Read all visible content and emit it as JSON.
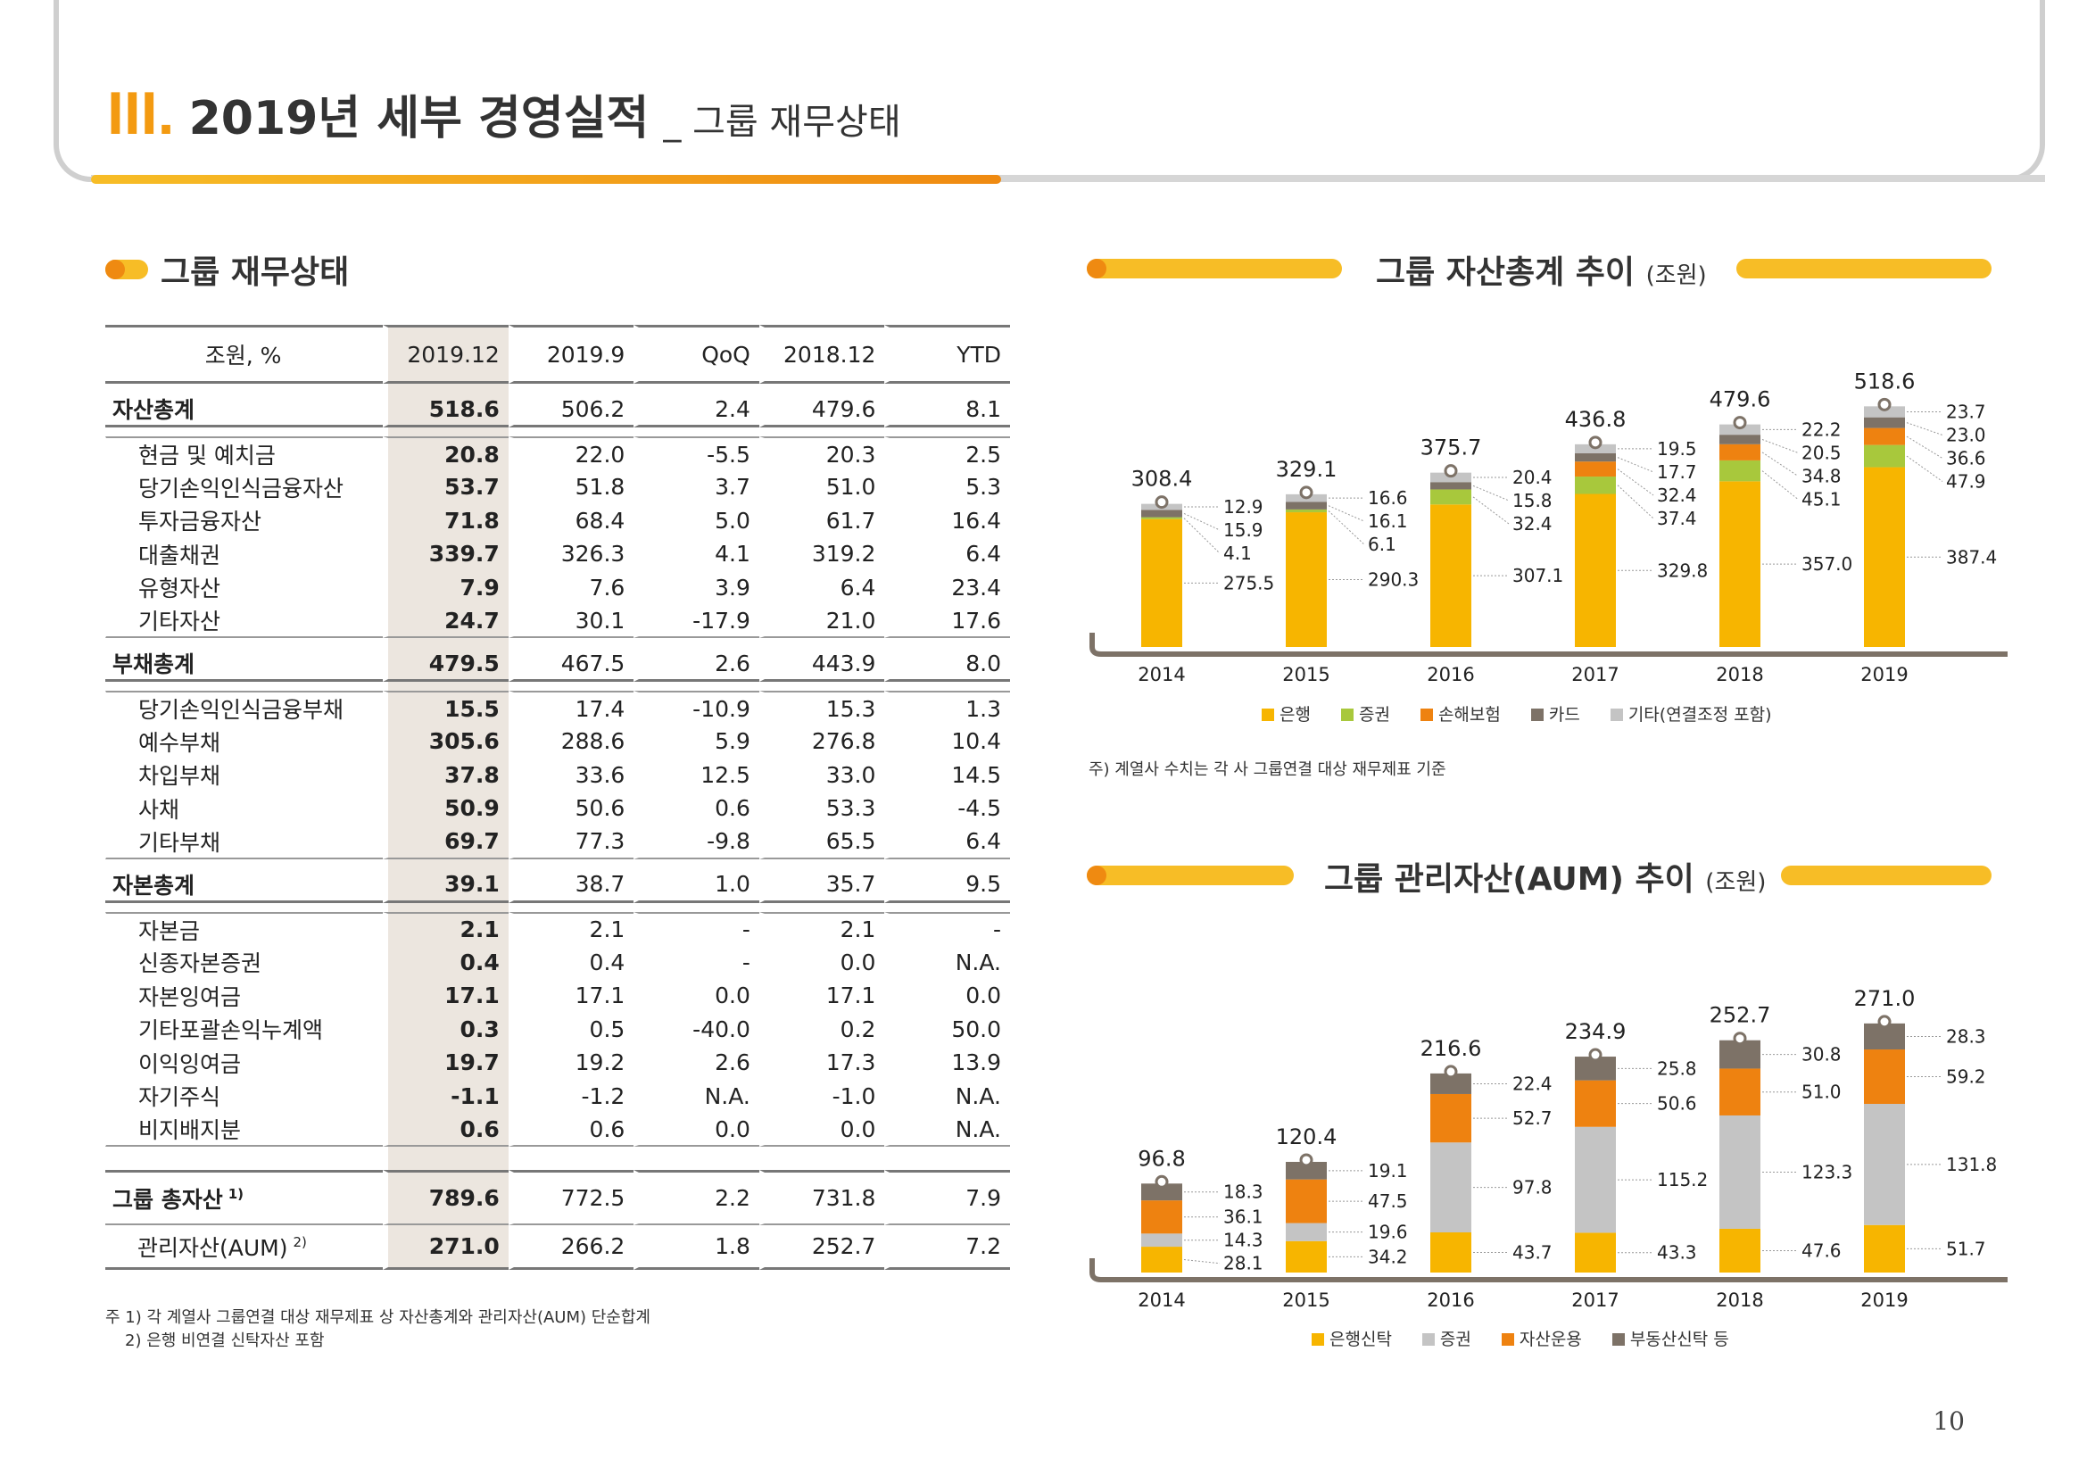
{
  "header": {
    "numeral": "III.",
    "title": "2019년 세부 경영실적",
    "subtitle": "_ 그룹 재무상태"
  },
  "left_section_title": "그룹 재무상태",
  "table": {
    "columns": [
      "조원, %",
      "2019.12",
      "2019.9",
      "QoQ",
      "2018.12",
      "YTD"
    ],
    "groups": [
      {
        "label": "자산총계",
        "values": [
          "518.6",
          "506.2",
          "2.4",
          "479.6",
          "8.1"
        ],
        "rows": [
          {
            "label": "현금 및 예치금",
            "values": [
              "20.8",
              "22.0",
              "-5.5",
              "20.3",
              "2.5"
            ]
          },
          {
            "label": "당기손익인식금융자산",
            "values": [
              "53.7",
              "51.8",
              "3.7",
              "51.0",
              "5.3"
            ]
          },
          {
            "label": "투자금융자산",
            "values": [
              "71.8",
              "68.4",
              "5.0",
              "61.7",
              "16.4"
            ]
          },
          {
            "label": "대출채권",
            "values": [
              "339.7",
              "326.3",
              "4.1",
              "319.2",
              "6.4"
            ]
          },
          {
            "label": "유형자산",
            "values": [
              "7.9",
              "7.6",
              "3.9",
              "6.4",
              "23.4"
            ]
          },
          {
            "label": "기타자산",
            "values": [
              "24.7",
              "30.1",
              "-17.9",
              "21.0",
              "17.6"
            ]
          }
        ]
      },
      {
        "label": "부채총계",
        "values": [
          "479.5",
          "467.5",
          "2.6",
          "443.9",
          "8.0"
        ],
        "rows": [
          {
            "label": "당기손익인식금융부채",
            "values": [
              "15.5",
              "17.4",
              "-10.9",
              "15.3",
              "1.3"
            ]
          },
          {
            "label": "예수부채",
            "values": [
              "305.6",
              "288.6",
              "5.9",
              "276.8",
              "10.4"
            ]
          },
          {
            "label": "차입부채",
            "values": [
              "37.8",
              "33.6",
              "12.5",
              "33.0",
              "14.5"
            ]
          },
          {
            "label": "사채",
            "values": [
              "50.9",
              "50.6",
              "0.6",
              "53.3",
              "-4.5"
            ]
          },
          {
            "label": "기타부채",
            "values": [
              "69.7",
              "77.3",
              "-9.8",
              "65.5",
              "6.4"
            ]
          }
        ]
      },
      {
        "label": "자본총계",
        "values": [
          "39.1",
          "38.7",
          "1.0",
          "35.7",
          "9.5"
        ],
        "rows": [
          {
            "label": "자본금",
            "values": [
              "2.1",
              "2.1",
              "-",
              "2.1",
              "-"
            ]
          },
          {
            "label": "신종자본증권",
            "values": [
              "0.4",
              "0.4",
              "-",
              "0.0",
              "N.A."
            ]
          },
          {
            "label": "자본잉여금",
            "values": [
              "17.1",
              "17.1",
              "0.0",
              "17.1",
              "0.0"
            ]
          },
          {
            "label": "기타포괄손익누계액",
            "values": [
              "0.3",
              "0.5",
              "-40.0",
              "0.2",
              "50.0"
            ]
          },
          {
            "label": "이익잉여금",
            "values": [
              "19.7",
              "19.2",
              "2.6",
              "17.3",
              "13.9"
            ]
          },
          {
            "label": "자기주식",
            "values": [
              "-1.1",
              "-1.2",
              "N.A.",
              "-1.0",
              "N.A."
            ]
          },
          {
            "label": "비지배지분",
            "values": [
              "0.6",
              "0.6",
              "0.0",
              "0.0",
              "N.A."
            ]
          }
        ]
      }
    ],
    "bottom": [
      {
        "label": "그룹 총자산",
        "sup": "1)",
        "values": [
          "789.6",
          "772.5",
          "2.2",
          "731.8",
          "7.9"
        ]
      },
      {
        "label": "관리자산(AUM)",
        "sup": "2)",
        "values": [
          "271.0",
          "266.2",
          "1.8",
          "252.7",
          "7.2"
        ]
      }
    ],
    "footnote1": "주 1) 각 계열사 그룹연결 대상 재무제표 상 자산총계와 관리자산(AUM) 단순합계",
    "footnote2": "2) 은행 비연결 신탁자산 포함"
  },
  "chart1_title": "그룹 자산총계 추이",
  "chart1_unit": "(조원)",
  "chart1_note": "주) 계열사 수치는 각 사 그룹연결 대상 재무제표 기준",
  "chart2_title": "그룹 관리자산(AUM) 추이",
  "chart2_unit": "(조원)",
  "page_number": "10",
  "chart_data": [
    {
      "type": "bar",
      "stacked": true,
      "title": "그룹 자산총계 추이 (조원)",
      "categories": [
        "2014",
        "2015",
        "2016",
        "2017",
        "2018",
        "2019"
      ],
      "totals": [
        "308.4",
        "329.1",
        "375.7",
        "436.8",
        "479.6",
        "518.6"
      ],
      "series": [
        {
          "name": "은행",
          "color": "#f7b500",
          "values": [
            275.5,
            290.3,
            307.1,
            329.8,
            357.0,
            387.4
          ],
          "labels": [
            "275.5",
            "290.3",
            "307.1",
            "329.8",
            "357.0",
            "387.4"
          ]
        },
        {
          "name": "증권",
          "color": "#a8c83c",
          "values": [
            4.1,
            6.1,
            32.4,
            37.4,
            45.1,
            47.9
          ],
          "labels": [
            "4.1",
            "6.1",
            "32.4",
            "37.4",
            "45.1",
            "47.9"
          ]
        },
        {
          "name": "손해보험",
          "color": "#ee8210",
          "values": [
            0,
            0,
            0,
            32.4,
            34.8,
            36.6
          ],
          "labels": [
            "",
            "",
            "",
            "32.4",
            "34.8",
            "36.6"
          ]
        },
        {
          "name": "카드",
          "color": "#7d7267",
          "values": [
            15.9,
            16.1,
            15.8,
            17.7,
            20.5,
            23.0
          ],
          "labels": [
            "15.9",
            "16.1",
            "15.8",
            "17.7",
            "20.5",
            "23.0"
          ]
        },
        {
          "name": "기타(연결조정 포함)",
          "color": "#c4c4c4",
          "values": [
            12.9,
            16.6,
            20.4,
            19.5,
            22.2,
            23.7
          ],
          "labels": [
            "12.9",
            "16.6",
            "20.4",
            "19.5",
            "22.2",
            "23.7"
          ]
        }
      ]
    },
    {
      "type": "bar",
      "stacked": true,
      "title": "그룹 관리자산(AUM) 추이 (조원)",
      "categories": [
        "2014",
        "2015",
        "2016",
        "2017",
        "2018",
        "2019"
      ],
      "totals": [
        "96.8",
        "120.4",
        "216.6",
        "234.9",
        "252.7",
        "271.0"
      ],
      "series": [
        {
          "name": "은행신탁",
          "color": "#f7b500",
          "values": [
            28.1,
            34.2,
            43.7,
            43.3,
            47.6,
            51.7
          ],
          "labels": [
            "28.1",
            "34.2",
            "43.7",
            "43.3",
            "47.6",
            "51.7"
          ]
        },
        {
          "name": "증권",
          "color": "#c4c4c4",
          "values": [
            14.3,
            19.6,
            97.8,
            115.2,
            123.3,
            131.8
          ],
          "labels": [
            "14.3",
            "19.6",
            "97.8",
            "115.2",
            "123.3",
            "131.8"
          ]
        },
        {
          "name": "자산운용",
          "color": "#ee8210",
          "values": [
            36.1,
            47.5,
            52.7,
            50.6,
            51.0,
            59.2
          ],
          "labels": [
            "36.1",
            "47.5",
            "52.7",
            "50.6",
            "51.0",
            "59.2"
          ]
        },
        {
          "name": "부동산신탁 등",
          "color": "#7d7267",
          "values": [
            18.3,
            19.1,
            22.4,
            25.8,
            30.8,
            28.3
          ],
          "labels": [
            "18.3",
            "19.1",
            "22.4",
            "25.8",
            "30.8",
            "28.3"
          ]
        }
      ]
    }
  ]
}
